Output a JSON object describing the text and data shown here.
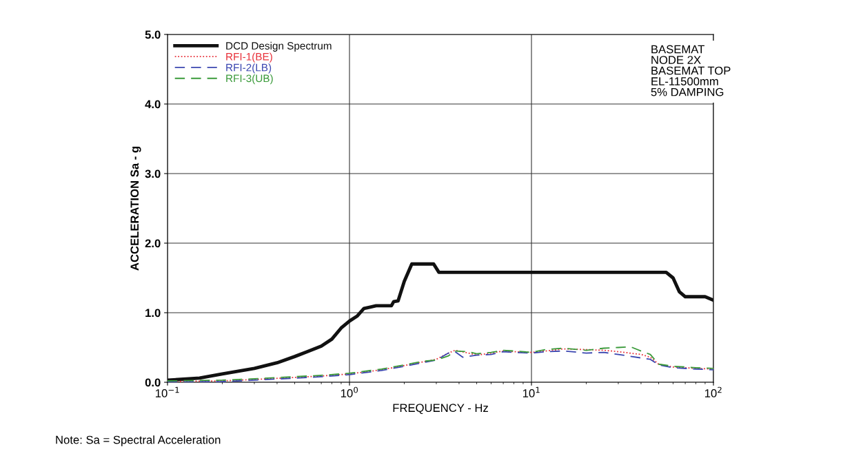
{
  "chart_data": {
    "type": "line",
    "log": "x",
    "xlabel": "FREQUENCY - Hz",
    "ylabel": "ACCELERATION Sa - g",
    "xlim": [
      0.1,
      100
    ],
    "xticks": [
      {
        "value": 0.1,
        "label": "10$^{−1}$"
      },
      {
        "value": 1,
        "label": "10$^{0}$"
      },
      {
        "value": 10,
        "label": "10$^{1}$"
      },
      {
        "value": 100,
        "label": "10$^{2}$"
      }
    ],
    "ylim": [
      0,
      5
    ],
    "yticks": [
      {
        "value": 0,
        "label": "0.0"
      },
      {
        "value": 1,
        "label": "1.0"
      },
      {
        "value": 2,
        "label": "2.0"
      },
      {
        "value": 3,
        "label": "3.0"
      },
      {
        "value": 4,
        "label": "4.0"
      },
      {
        "value": 5,
        "label": "5.0"
      }
    ],
    "grid": true,
    "legend": "top left",
    "marker": "none",
    "annotations": [
      "BASEMAT\nNODE 2X\nBASEMAT TOP\nEL-11500mm\n5% DAMPING",
      "Note: Sa = Spectral Acceleration"
    ],
    "series": [
      {
        "name": "DCD Design Spectrum",
        "color": "#111111",
        "line_style": "solid",
        "x": [
          0.1,
          0.15,
          0.2,
          0.3,
          0.4,
          0.5,
          0.6,
          0.7,
          0.8,
          0.9,
          1.0,
          1.1,
          1.2,
          1.3,
          1.4,
          1.7,
          1.75,
          1.85,
          2.0,
          2.2,
          2.9,
          3.1,
          55,
          60,
          65,
          70,
          90,
          100
        ],
        "values": [
          0.03,
          0.06,
          0.12,
          0.2,
          0.28,
          0.37,
          0.45,
          0.52,
          0.62,
          0.78,
          0.88,
          0.95,
          1.06,
          1.08,
          1.1,
          1.1,
          1.16,
          1.17,
          1.45,
          1.7,
          1.7,
          1.58,
          1.58,
          1.5,
          1.3,
          1.23,
          1.23,
          1.18
        ]
      },
      {
        "name": "RFI-1(BE)",
        "color": "#e8313a",
        "line_style": "dotted",
        "x": [
          0.1,
          0.2,
          0.3,
          0.5,
          0.7,
          1,
          1.5,
          2,
          2.5,
          3,
          3.5,
          3.8,
          4.5,
          5,
          6,
          7,
          8,
          10,
          12,
          15,
          20,
          25,
          30,
          40,
          45,
          50,
          60,
          80,
          100
        ],
        "values": [
          0.01,
          0.02,
          0.04,
          0.07,
          0.09,
          0.12,
          0.18,
          0.24,
          0.29,
          0.33,
          0.42,
          0.46,
          0.42,
          0.39,
          0.42,
          0.45,
          0.44,
          0.43,
          0.45,
          0.48,
          0.47,
          0.46,
          0.44,
          0.4,
          0.36,
          0.26,
          0.22,
          0.2,
          0.19
        ]
      },
      {
        "name": "RFI-2(LB)",
        "color": "#3a46b0",
        "line_style": "dashed",
        "x": [
          0.1,
          0.2,
          0.3,
          0.5,
          0.7,
          1,
          1.5,
          2,
          2.5,
          3,
          3.5,
          3.8,
          4.2,
          5,
          6,
          7,
          8,
          10,
          12,
          15,
          20,
          25,
          30,
          40,
          45,
          50,
          60,
          80,
          100
        ],
        "values": [
          0.005,
          0.01,
          0.03,
          0.06,
          0.08,
          0.11,
          0.17,
          0.23,
          0.28,
          0.32,
          0.42,
          0.44,
          0.36,
          0.39,
          0.4,
          0.44,
          0.43,
          0.42,
          0.44,
          0.45,
          0.42,
          0.43,
          0.4,
          0.35,
          0.33,
          0.25,
          0.21,
          0.19,
          0.18
        ]
      },
      {
        "name": "RFI-3(UB)",
        "color": "#3a9a3a",
        "line_style": "dashed",
        "x": [
          0.1,
          0.2,
          0.3,
          0.5,
          0.7,
          1,
          1.5,
          2,
          2.5,
          3,
          3.5,
          3.8,
          4.5,
          5,
          6,
          7,
          8,
          10,
          12,
          15,
          20,
          25,
          30,
          35,
          40,
          45,
          50,
          60,
          80,
          100
        ],
        "values": [
          0.02,
          0.03,
          0.05,
          0.08,
          0.1,
          0.13,
          0.19,
          0.25,
          0.3,
          0.32,
          0.38,
          0.45,
          0.44,
          0.41,
          0.43,
          0.46,
          0.45,
          0.43,
          0.47,
          0.49,
          0.46,
          0.49,
          0.5,
          0.51,
          0.45,
          0.4,
          0.26,
          0.23,
          0.21,
          0.2
        ]
      }
    ]
  }
}
